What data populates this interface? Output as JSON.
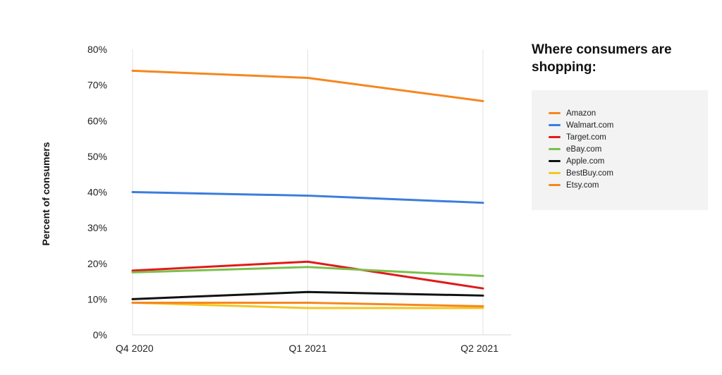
{
  "legend": {
    "title": "Where consumers are shopping:"
  },
  "chart_data": {
    "type": "line",
    "title": "",
    "xlabel": "",
    "ylabel": "Percent of consumers",
    "categories": [
      "Q4 2020",
      "Q1 2021",
      "Q2 2021"
    ],
    "ylim": [
      0,
      80
    ],
    "yticks": [
      "0%",
      "10%",
      "20%",
      "30%",
      "40%",
      "50%",
      "60%",
      "70%",
      "80%"
    ],
    "grid": {
      "vertical": true,
      "horizontal": false
    },
    "legend_position": "right",
    "series": [
      {
        "name": "Amazon",
        "color": "#f5871f",
        "values": [
          74,
          72,
          65.5
        ]
      },
      {
        "name": "Walmart.com",
        "color": "#3b7ddd",
        "values": [
          40,
          39,
          37
        ]
      },
      {
        "name": "Target.com",
        "color": "#e01a1a",
        "values": [
          18,
          20.5,
          13
        ]
      },
      {
        "name": "eBay.com",
        "color": "#7bbf4b",
        "values": [
          17.5,
          19,
          16.5
        ]
      },
      {
        "name": "Apple.com",
        "color": "#111111",
        "values": [
          10,
          12,
          11
        ]
      },
      {
        "name": "BestBuy.com",
        "color": "#f3c623",
        "values": [
          9,
          7.5,
          7.5
        ]
      },
      {
        "name": "Etsy.com",
        "color": "#f5871f",
        "values": [
          9,
          9,
          8
        ]
      }
    ]
  }
}
